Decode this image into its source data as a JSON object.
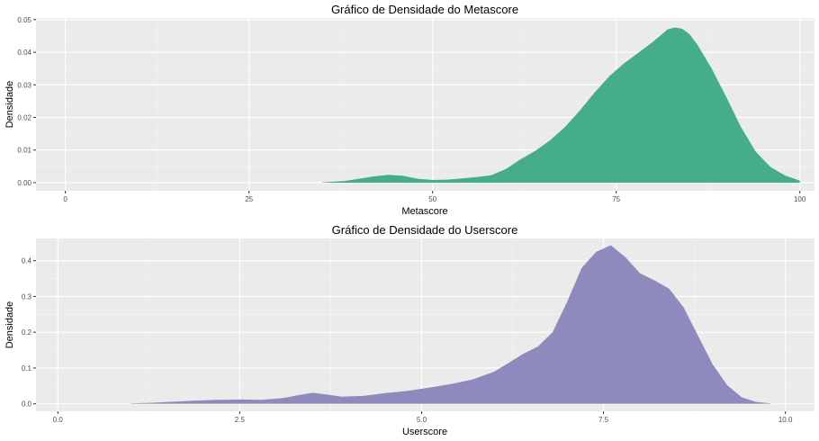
{
  "charts": [
    {
      "type": "area",
      "title": "Gráfico de Densidade do Metascore",
      "xlabel": "Metascore",
      "ylabel": "Densidade",
      "xlim": [
        -4,
        102
      ],
      "ylim": [
        -0.0025,
        0.0505
      ],
      "x_ticks": [
        0,
        25,
        50,
        75,
        100
      ],
      "x_tick_labels": [
        "0",
        "25",
        "50",
        "75",
        "100"
      ],
      "y_ticks": [
        0,
        0.01,
        0.02,
        0.03,
        0.04,
        0.05
      ],
      "y_tick_labels": [
        "0.00",
        "0.01",
        "0.02",
        "0.03",
        "0.04",
        "0.05"
      ],
      "grid": true,
      "fill_color": "#46ad8b",
      "series": [
        {
          "x": [
            35,
            38,
            40,
            42,
            44,
            46,
            48,
            50,
            52,
            54,
            56,
            58,
            60,
            62,
            64,
            66,
            68,
            70,
            72,
            74,
            76,
            78,
            80,
            82,
            83,
            84,
            85,
            86,
            88,
            90,
            92,
            94,
            96,
            98,
            100
          ],
          "y": [
            0.0001,
            0.0005,
            0.0012,
            0.0019,
            0.0024,
            0.0021,
            0.0012,
            0.0008,
            0.0009,
            0.0013,
            0.0017,
            0.0023,
            0.0042,
            0.0072,
            0.0098,
            0.013,
            0.017,
            0.022,
            0.0275,
            0.0325,
            0.0365,
            0.0398,
            0.0432,
            0.047,
            0.0476,
            0.0472,
            0.0455,
            0.0425,
            0.035,
            0.0262,
            0.017,
            0.0095,
            0.0048,
            0.0022,
            0.0006
          ]
        }
      ]
    },
    {
      "type": "area",
      "title": "Gráfico de Densidade do Userscore",
      "xlabel": "Userscore",
      "ylabel": "Densidade",
      "xlim": [
        -0.3,
        10.4
      ],
      "ylim": [
        -0.021,
        0.462
      ],
      "x_ticks": [
        0,
        2.5,
        5.0,
        7.5,
        10.0
      ],
      "x_tick_labels": [
        "0.0",
        "2.5",
        "5.0",
        "7.5",
        "10.0"
      ],
      "y_ticks": [
        0,
        0.1,
        0.2,
        0.3,
        0.4
      ],
      "y_tick_labels": [
        "0.0",
        "0.1",
        "0.2",
        "0.3",
        "0.4"
      ],
      "grid": true,
      "fill_color": "#8f8abd",
      "series": [
        {
          "x": [
            1.0,
            1.3,
            1.6,
            1.9,
            2.2,
            2.5,
            2.8,
            3.1,
            3.3,
            3.5,
            3.7,
            3.9,
            4.2,
            4.5,
            4.8,
            5.1,
            5.4,
            5.7,
            6.0,
            6.2,
            6.4,
            6.6,
            6.8,
            7.0,
            7.2,
            7.4,
            7.6,
            7.8,
            8.0,
            8.2,
            8.4,
            8.6,
            8.8,
            9.0,
            9.2,
            9.4,
            9.6,
            9.8
          ],
          "y": [
            0.001,
            0.003,
            0.006,
            0.009,
            0.011,
            0.012,
            0.011,
            0.016,
            0.024,
            0.031,
            0.026,
            0.02,
            0.022,
            0.03,
            0.036,
            0.045,
            0.055,
            0.068,
            0.09,
            0.115,
            0.14,
            0.16,
            0.2,
            0.285,
            0.38,
            0.425,
            0.443,
            0.41,
            0.365,
            0.345,
            0.322,
            0.27,
            0.19,
            0.11,
            0.052,
            0.018,
            0.005,
            0.001
          ]
        }
      ]
    }
  ]
}
